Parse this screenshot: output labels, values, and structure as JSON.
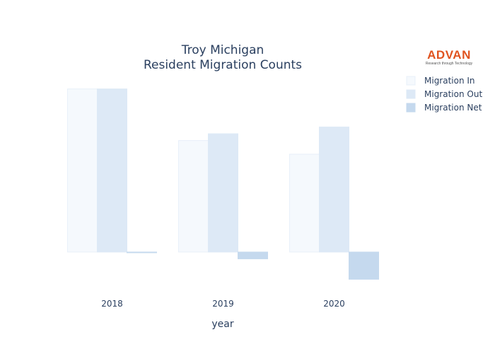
{
  "logo": {
    "name": "ADVAN",
    "tagline": "Research through Technology"
  },
  "colors": {
    "migration_in": "#f5f9fd",
    "migration_out": "#dde9f6",
    "migration_net": "#c5d9ee",
    "bar_edge_in": "#e8f0f9",
    "text": "#2a3f5f",
    "logo": "#e0531f"
  },
  "chart_data": {
    "type": "bar",
    "title": [
      "Troy Michigan",
      "Resident Migration Counts"
    ],
    "xlabel": "year",
    "ylabel": "",
    "categories": [
      "2018",
      "2019",
      "2020"
    ],
    "series": [
      {
        "name": "Migration In",
        "values": [
          1200,
          820,
          720
        ]
      },
      {
        "name": "Migration Out",
        "values": [
          1200,
          870,
          920
        ]
      },
      {
        "name": "Migration Net",
        "values": [
          0,
          -50,
          -200
        ]
      }
    ],
    "ylim": [
      -250,
      1250
    ],
    "grid": false,
    "legend_position": "top-right"
  }
}
